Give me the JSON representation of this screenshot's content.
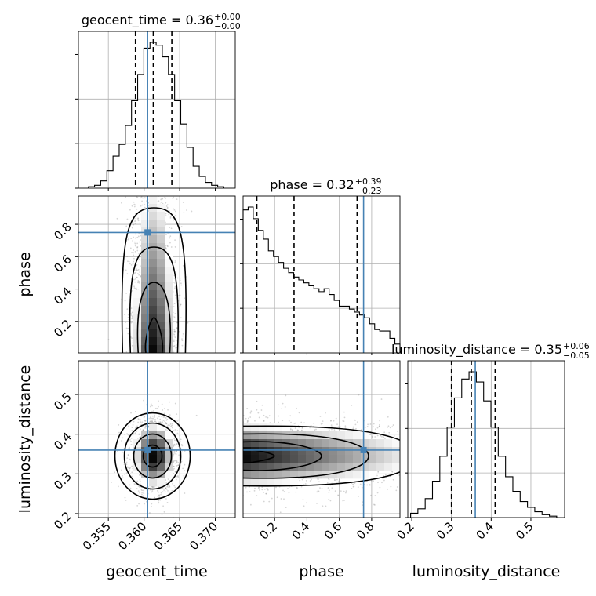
{
  "colors": {
    "truth": "#4682b4",
    "line": "#000000",
    "grid": "#b0b0b0",
    "points": "#888888"
  },
  "chart_data": {
    "type": "corner",
    "parameters": [
      "geocent_time",
      "phase",
      "luminosity_distance"
    ],
    "truths": {
      "geocent_time": 0.3605,
      "phase": 0.75,
      "luminosity_distance": 0.36
    },
    "titles": [
      {
        "name": "geocent_time",
        "text": "geocent_time = 0.36",
        "plus": "+0.00",
        "minus": "−0.00"
      },
      {
        "name": "phase",
        "text": "phase = 0.32",
        "plus": "+0.39",
        "minus": "−0.23"
      },
      {
        "name": "luminosity_distance",
        "text": "luminosity_distance = 0.35",
        "plus": "+0.06",
        "minus": "−0.05"
      }
    ],
    "xlabels": [
      "geocent_time",
      "phase",
      "luminosity_distance"
    ],
    "ylabels": [
      "phase",
      "luminosity_distance"
    ],
    "ranges": {
      "geocent_time": [
        0.3508,
        0.3728
      ],
      "phase": [
        0.005,
        0.975
      ],
      "luminosity_distance": [
        0.19,
        0.585
      ]
    },
    "ticks": {
      "geocent_time": [
        "0.355",
        "0.360",
        "0.365",
        "0.370"
      ],
      "phase": [
        "0.2",
        "0.4",
        "0.6",
        "0.8"
      ],
      "luminosity_distance": [
        "0.2",
        "0.3",
        "0.4",
        "0.5"
      ]
    },
    "quantiles": {
      "geocent_time": [
        0.3588,
        0.3613,
        0.3639
      ],
      "phase": [
        0.09,
        0.32,
        0.71
      ],
      "luminosity_distance": [
        0.3,
        0.35,
        0.41
      ]
    },
    "hist_geocent_time": [
      0.01,
      0.02,
      0.05,
      0.12,
      0.22,
      0.3,
      0.43,
      0.6,
      0.78,
      0.96,
      1.0,
      0.98,
      0.9,
      0.78,
      0.6,
      0.44,
      0.28,
      0.15,
      0.08,
      0.04,
      0.02,
      0.01
    ],
    "hist_phase": [
      0.98,
      1.0,
      0.92,
      0.84,
      0.78,
      0.7,
      0.66,
      0.62,
      0.58,
      0.55,
      0.52,
      0.5,
      0.48,
      0.46,
      0.44,
      0.42,
      0.44,
      0.4,
      0.36,
      0.32,
      0.32,
      0.3,
      0.28,
      0.26,
      0.24,
      0.2,
      0.16,
      0.15,
      0.15,
      0.1,
      0.06
    ],
    "hist_luminosity_distance": [
      0.03,
      0.06,
      0.13,
      0.25,
      0.42,
      0.62,
      0.82,
      0.95,
      1.0,
      0.93,
      0.8,
      0.62,
      0.42,
      0.28,
      0.18,
      0.11,
      0.07,
      0.04,
      0.02,
      0.01
    ]
  }
}
